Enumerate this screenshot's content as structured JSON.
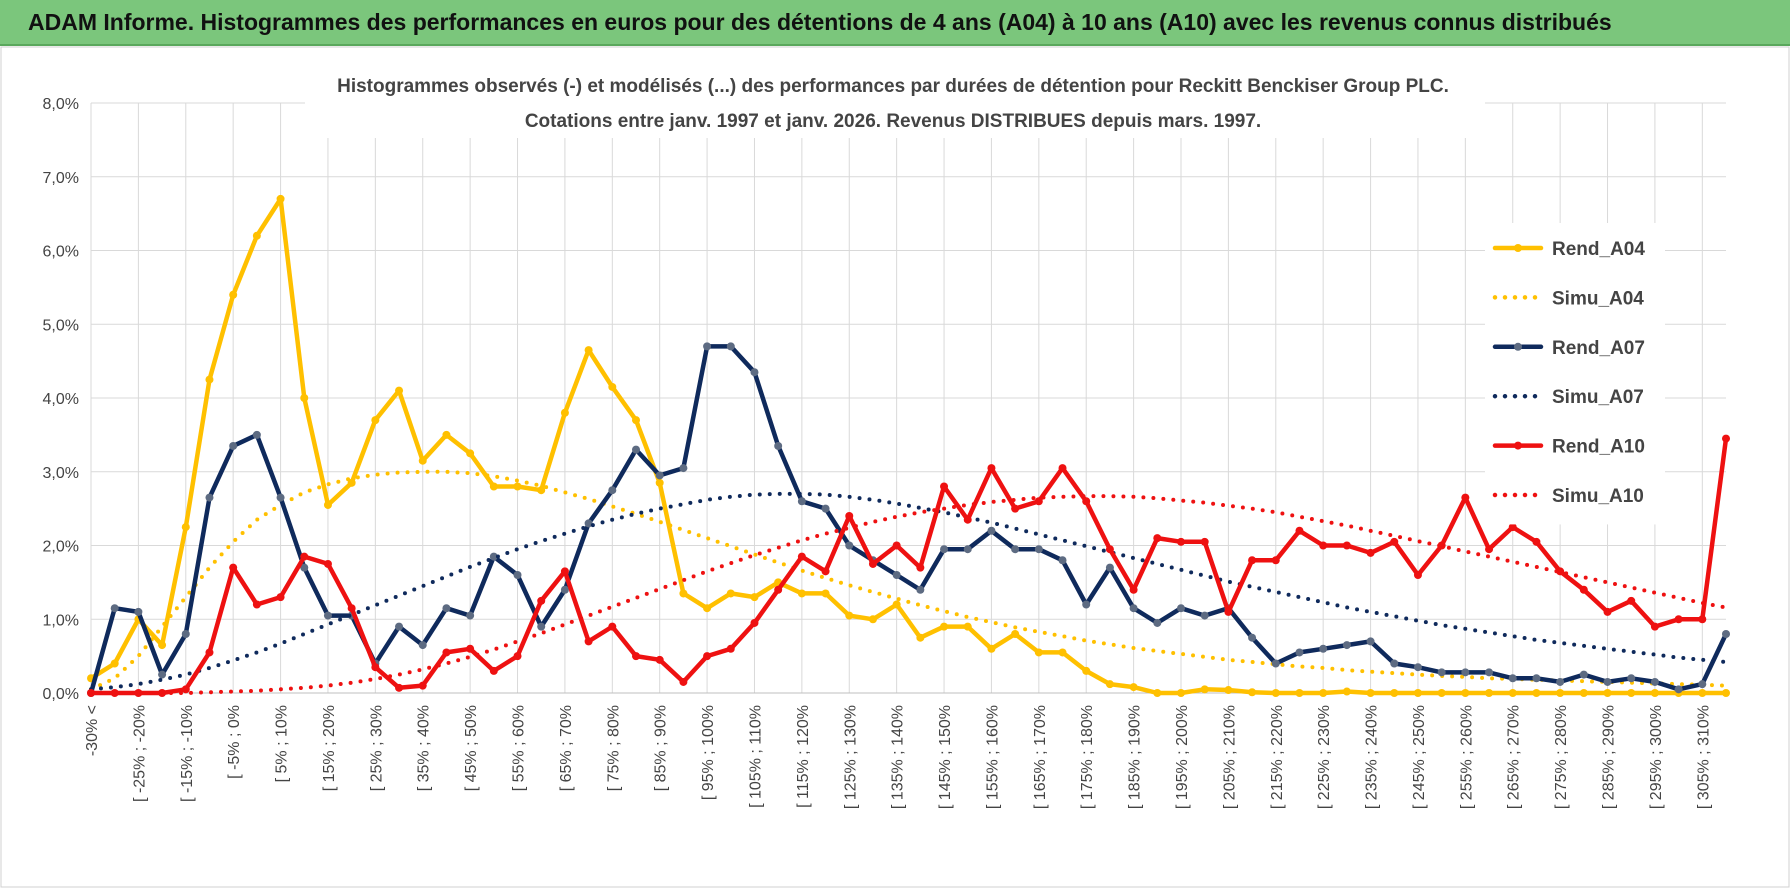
{
  "header": {
    "title": "ADAM Informe. Histogrammes des performances en euros pour des détentions de 4 ans (A04) à 10 ans (A10) avec les revenus connus distribués"
  },
  "chart_data": {
    "type": "line",
    "title": "Histogrammes observés (-) et modélisés (...) des performances par durées de détention pour Reckitt Benckiser Group PLC.",
    "subtitle": "Cotations entre janv. 1997 et janv. 2026. Revenus DISTRIBUES depuis mars. 1997.",
    "categories": [
      "-30% <",
      null,
      "[ -25% ; -20%",
      null,
      "[ -15% ; -10%",
      null,
      "[ -5% ; 0%",
      null,
      "[ 5% ; 10%",
      null,
      "[ 15% ; 20%",
      null,
      "[ 25% ; 30%",
      null,
      "[ 35% ; 40%",
      null,
      "[ 45% ; 50%",
      null,
      "[ 55% ; 60%",
      null,
      "[ 65% ; 70%",
      null,
      "[ 75% ; 80%",
      null,
      "[ 85% ; 90%",
      null,
      "[ 95% ; 100%",
      null,
      "[ 105% ; 110%",
      null,
      "[ 115% ; 120%",
      null,
      "[ 125% ; 130%",
      null,
      "[ 135% ; 140%",
      null,
      "[ 145% ; 150%",
      null,
      "[ 155% ; 160%",
      null,
      "[ 165% ; 170%",
      null,
      "[ 175% ; 180%",
      null,
      "[ 185% ; 190%",
      null,
      "[ 195% ; 200%",
      null,
      "[ 205% ; 210%",
      null,
      "[ 215% ; 220%",
      null,
      "[ 225% ; 230%",
      null,
      "[ 235% ; 240%",
      null,
      "[ 245% ; 250%",
      null,
      "[ 255% ; 260%",
      null,
      "[ 265% ; 270%",
      null,
      "[ 275% ; 280%",
      null,
      "[ 285% ; 290%",
      null,
      "[ 295% ; 300%",
      null,
      "[ 305% ; 310%",
      null
    ],
    "ylim": [
      0,
      8
    ],
    "yticks": [
      {
        "value": 0,
        "label": "0,0%"
      },
      {
        "value": 1,
        "label": "1,0%"
      },
      {
        "value": 2,
        "label": "2,0%"
      },
      {
        "value": 3,
        "label": "3,0%"
      },
      {
        "value": 4,
        "label": "4,0%"
      },
      {
        "value": 5,
        "label": "5,0%"
      },
      {
        "value": 6,
        "label": "6,0%"
      },
      {
        "value": 7,
        "label": "7,0%"
      },
      {
        "value": 8,
        "label": "8,0%"
      }
    ],
    "grid": true,
    "legend": "upper right",
    "series": [
      {
        "name": "Rend_A04",
        "color": "#ffc000",
        "style": "solid",
        "marker": true,
        "values": [
          0.2,
          0.4,
          1.0,
          0.65,
          2.25,
          4.25,
          5.4,
          6.2,
          6.7,
          4.0,
          2.55,
          2.85,
          3.7,
          4.1,
          3.15,
          3.5,
          3.25,
          2.8,
          2.8,
          2.75,
          3.8,
          4.65,
          4.15,
          3.7,
          2.85,
          1.35,
          1.15,
          1.35,
          1.3,
          1.5,
          1.35,
          1.35,
          1.05,
          1.0,
          1.2,
          0.75,
          0.9,
          0.9,
          0.6,
          0.8,
          0.55,
          0.55,
          0.3,
          0.12,
          0.08,
          0.0,
          0.0,
          0.05,
          0.04,
          0.01,
          0,
          0,
          0,
          0.02,
          0,
          0,
          0,
          0,
          0,
          0,
          0,
          0,
          0,
          0,
          0,
          0,
          0,
          0,
          0,
          0
        ]
      },
      {
        "name": "Simu_A04",
        "color": "#ffc000",
        "style": "dotted",
        "marker": false,
        "values": [
          0.05,
          0.2,
          0.5,
          0.9,
          1.3,
          1.7,
          2.05,
          2.35,
          2.55,
          2.72,
          2.83,
          2.91,
          2.96,
          2.99,
          3.0,
          3.0,
          2.98,
          2.94,
          2.88,
          2.81,
          2.72,
          2.63,
          2.53,
          2.43,
          2.32,
          2.21,
          2.1,
          1.99,
          1.88,
          1.77,
          1.66,
          1.56,
          1.46,
          1.37,
          1.28,
          1.19,
          1.11,
          1.03,
          0.96,
          0.89,
          0.83,
          0.77,
          0.71,
          0.66,
          0.61,
          0.57,
          0.53,
          0.49,
          0.45,
          0.42,
          0.39,
          0.36,
          0.34,
          0.31,
          0.29,
          0.27,
          0.25,
          0.23,
          0.22,
          0.2,
          0.19,
          0.18,
          0.17,
          0.16,
          0.15,
          0.14,
          0.13,
          0.12,
          0.11,
          0.1
        ]
      },
      {
        "name": "Rend_A07",
        "color": "#0f2a5c",
        "style": "solid",
        "marker": true,
        "values": [
          0.0,
          1.15,
          1.1,
          0.25,
          0.8,
          2.65,
          3.35,
          3.5,
          2.65,
          1.7,
          1.05,
          1.05,
          0.4,
          0.9,
          0.65,
          1.15,
          1.05,
          1.85,
          1.6,
          0.9,
          1.4,
          2.3,
          2.75,
          3.3,
          2.95,
          3.05,
          4.7,
          4.7,
          4.35,
          3.35,
          2.6,
          2.5,
          2.0,
          1.8,
          1.6,
          1.4,
          1.95,
          1.95,
          2.2,
          1.95,
          1.95,
          1.8,
          1.2,
          1.7,
          1.15,
          0.95,
          1.15,
          1.05,
          1.15,
          0.75,
          0.4,
          0.55,
          0.6,
          0.65,
          0.7,
          0.4,
          0.35,
          0.28,
          0.28,
          0.28,
          0.2,
          0.2,
          0.15,
          0.25,
          0.15,
          0.2,
          0.15,
          0.05,
          0.12,
          0.8
        ]
      },
      {
        "name": "Simu_A07",
        "color": "#0f2a5c",
        "style": "dotted",
        "marker": false,
        "values": [
          0.05,
          0.08,
          0.12,
          0.18,
          0.25,
          0.34,
          0.44,
          0.55,
          0.67,
          0.8,
          0.93,
          1.06,
          1.19,
          1.32,
          1.45,
          1.58,
          1.71,
          1.83,
          1.95,
          2.06,
          2.16,
          2.26,
          2.35,
          2.43,
          2.5,
          2.56,
          2.62,
          2.66,
          2.69,
          2.7,
          2.7,
          2.69,
          2.66,
          2.62,
          2.57,
          2.51,
          2.45,
          2.38,
          2.31,
          2.23,
          2.15,
          2.07,
          1.99,
          1.91,
          1.83,
          1.75,
          1.67,
          1.59,
          1.51,
          1.44,
          1.37,
          1.3,
          1.23,
          1.16,
          1.1,
          1.04,
          0.98,
          0.92,
          0.87,
          0.82,
          0.77,
          0.72,
          0.68,
          0.64,
          0.6,
          0.56,
          0.52,
          0.48,
          0.45,
          0.42
        ]
      },
      {
        "name": "Rend_A10",
        "color": "#ee1111",
        "style": "solid",
        "marker": true,
        "values": [
          0,
          0,
          0,
          0,
          0.05,
          0.55,
          1.7,
          1.2,
          1.3,
          1.85,
          1.75,
          1.15,
          0.35,
          0.07,
          0.1,
          0.55,
          0.6,
          0.3,
          0.5,
          1.25,
          1.65,
          0.7,
          0.9,
          0.5,
          0.45,
          0.15,
          0.5,
          0.6,
          0.95,
          1.4,
          1.85,
          1.65,
          2.4,
          1.75,
          2.0,
          1.7,
          2.8,
          2.35,
          3.05,
          2.5,
          2.6,
          3.05,
          2.6,
          1.95,
          1.4,
          2.1,
          2.05,
          2.05,
          1.1,
          1.8,
          1.8,
          2.2,
          2.0,
          2.0,
          1.9,
          2.05,
          1.6,
          2.0,
          2.65,
          1.95,
          2.25,
          2.05,
          1.65,
          1.4,
          1.1,
          1.25,
          0.9,
          1.0,
          1.0,
          3.45
        ]
      },
      {
        "name": "Simu_A10",
        "color": "#ee1111",
        "style": "dotted",
        "marker": false,
        "values": [
          0,
          0,
          0,
          0,
          0,
          0.01,
          0.02,
          0.03,
          0.05,
          0.07,
          0.1,
          0.14,
          0.19,
          0.25,
          0.32,
          0.4,
          0.49,
          0.59,
          0.7,
          0.81,
          0.93,
          1.05,
          1.17,
          1.29,
          1.41,
          1.53,
          1.65,
          1.76,
          1.87,
          1.97,
          2.07,
          2.16,
          2.24,
          2.32,
          2.39,
          2.45,
          2.5,
          2.55,
          2.59,
          2.62,
          2.65,
          2.66,
          2.67,
          2.67,
          2.66,
          2.64,
          2.61,
          2.58,
          2.54,
          2.5,
          2.45,
          2.39,
          2.33,
          2.27,
          2.2,
          2.13,
          2.06,
          1.99,
          1.92,
          1.85,
          1.78,
          1.71,
          1.64,
          1.57,
          1.5,
          1.43,
          1.36,
          1.29,
          1.22,
          1.16
        ]
      }
    ]
  }
}
